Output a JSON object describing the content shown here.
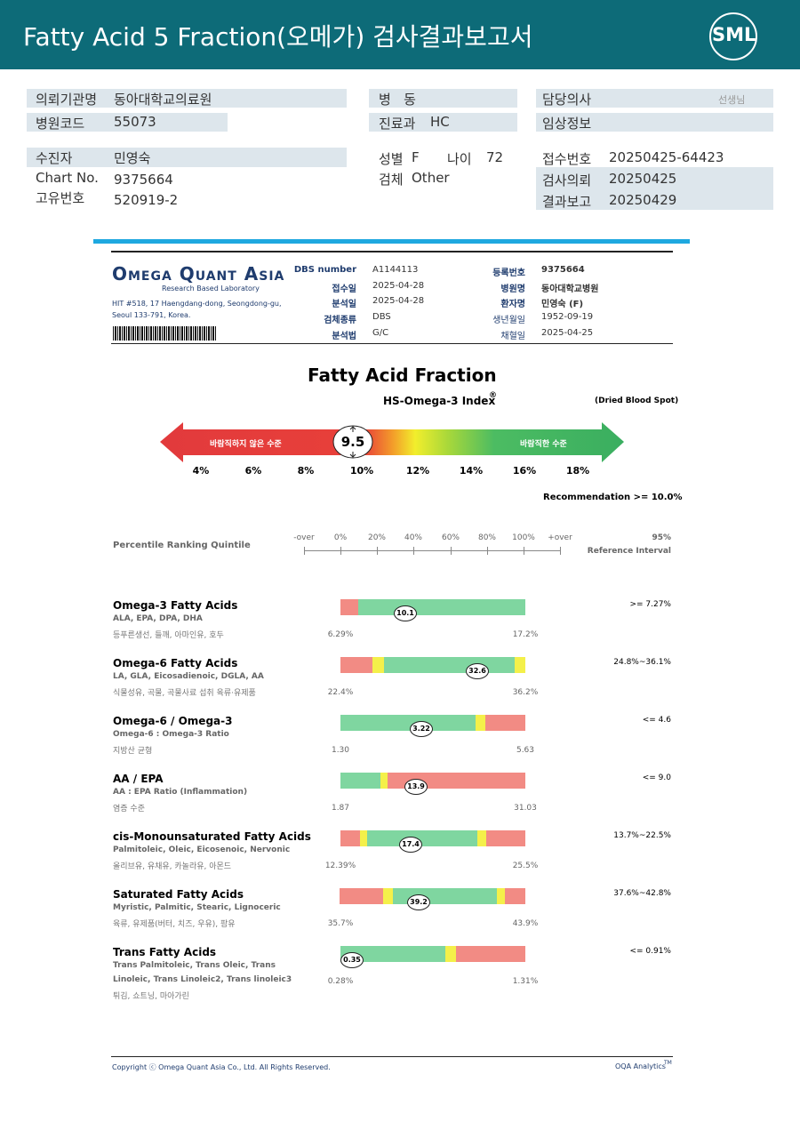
{
  "header": {
    "title": "Fatty Acid 5 Fraction(오메가) 검사결과보고서",
    "logo": "SML"
  },
  "patient": {
    "institution": {
      "label": "의뢰기관명",
      "value": "동아대학교의료원"
    },
    "ward": {
      "label": "병   동"
    },
    "doctor": {
      "label": "담당의사",
      "suffix": "선생님"
    },
    "hospital_code": {
      "label": "병원코드",
      "value": "55073"
    },
    "department": {
      "label": "진료과",
      "value": "HC"
    },
    "clinical_info": {
      "label": "임상정보"
    },
    "patient_name": {
      "label": "수진자",
      "value": "민영숙"
    },
    "sex": {
      "label": "성별",
      "value": "F"
    },
    "age": {
      "label": "나이",
      "value": "72"
    },
    "receipt_no": {
      "label": "접수번호",
      "value": "20250425-64423"
    },
    "chart_no": {
      "label": "Chart No.",
      "value": "9375664"
    },
    "specimen": {
      "label": "검체",
      "value": "Other"
    },
    "request_date": {
      "label": "검사의뢰",
      "value": "20250425"
    },
    "unique_no": {
      "label": "고유번호",
      "value": "520919-2"
    },
    "report_date": {
      "label": "결과보고",
      "value": "20250429"
    }
  },
  "lab": {
    "brand": "Omega Quant Asia",
    "tagline": "Research Based Laboratory",
    "address": [
      "HIT #518, 17 Haengdang-dong, Seongdong-gu,",
      "Seoul 133-791, Korea."
    ],
    "fields_mid": [
      {
        "label": "DBS number",
        "value": "A1144113"
      },
      {
        "label": "접수일",
        "value": "2025-04-28"
      },
      {
        "label": "분석일",
        "value": "2025-04-28"
      },
      {
        "label": "검체종류",
        "value": "DBS"
      },
      {
        "label": "분석법",
        "value": "G/C"
      }
    ],
    "fields_right": [
      {
        "label": "등록번호",
        "value": "9375664"
      },
      {
        "label": "병원명",
        "value": "동아대학교병원"
      },
      {
        "label": "환자명",
        "value": "민영숙 (F)"
      },
      {
        "label": "생년월일",
        "value": "1952-09-19"
      },
      {
        "label": "채혈일",
        "value": "2025-04-25"
      }
    ]
  },
  "index": {
    "title": "Fatty Acid Fraction",
    "name": "HS-Omega-3 Index",
    "mark": "®",
    "specimen": "(Dried Blood Spot)",
    "low_label": "바람직하지 않은 수준",
    "high_label": "바람직한 수준",
    "value": "9.5",
    "ticks": [
      "4%",
      "6%",
      "8%",
      "10%",
      "12%",
      "14%",
      "16%",
      "18%"
    ],
    "recommendation": "Recommendation  >= 10.0%"
  },
  "percentile": {
    "label": "Percentile Ranking Quintile",
    "scale": [
      "-over",
      "0%",
      "20%",
      "40%",
      "60%",
      "80%",
      "100%",
      "+over"
    ],
    "interval_label": "95%",
    "interval_sub": "Reference Interval"
  },
  "rows": [
    {
      "name": "Omega-3 Fatty Acids",
      "subtitle": [
        "ALA, EPA, DPA, DHA"
      ],
      "note": "등푸른생선, 들깨, 아마인유, 호두",
      "value": "10.1",
      "min": "6.29%",
      "max": "17.2%",
      "reference": ">= 7.27%"
    },
    {
      "name": "Omega-6 Fatty Acids",
      "subtitle": [
        "LA, GLA, Eicosadienoic, DGLA, AA"
      ],
      "note": "식물성유, 곡물, 곡물사료 섭취 육류·유제품",
      "value": "32.6",
      "min": "22.4%",
      "max": "36.2%",
      "reference": "24.8%~36.1%"
    },
    {
      "name": "Omega-6 / Omega-3",
      "subtitle": [
        "Omega-6 : Omega-3 Ratio"
      ],
      "note": "지방산 균형",
      "value": "3.22",
      "min": "1.30",
      "max": "5.63",
      "reference": "<= 4.6"
    },
    {
      "name": "AA / EPA",
      "subtitle": [
        "AA : EPA Ratio (Inflammation)"
      ],
      "note": "염증 수준",
      "value": "13.9",
      "min": "1.87",
      "max": "31.03",
      "reference": "<= 9.0"
    },
    {
      "name": "cis-Monounsaturated Fatty Acids",
      "subtitle": [
        "Palmitoleic, Oleic, Eicosenoic, Nervonic"
      ],
      "note": "올리브유, 유채유, 카놀라유, 아몬드",
      "value": "17.4",
      "min": "12.39%",
      "max": "25.5%",
      "reference": "13.7%~22.5%"
    },
    {
      "name": "Saturated Fatty Acids",
      "subtitle": [
        "Myristic, Palmitic, Stearic, Lignoceric"
      ],
      "note": "육류, 유제품(버터, 치즈, 우유), 팜유",
      "value": "39.2",
      "min": "35.7%",
      "max": "43.9%",
      "reference": "37.6%~42.8%"
    },
    {
      "name": "Trans Fatty Acids",
      "subtitle": [
        "Trans Palmitoleic, Trans Oleic, Trans",
        "Linoleic, Trans Linoleic2, Trans linoleic3"
      ],
      "note": "튀김, 쇼트닝, 마아가린",
      "value": "0.35",
      "min": "0.28%",
      "max": "1.31%",
      "reference": "<= 0.91%"
    }
  ],
  "footer": {
    "copyright": "Copyright ⓒ Omega Quant Asia Co., Ltd.  All Rights Reserved.",
    "brand": "OQA Analytics",
    "tm": "TM"
  }
}
